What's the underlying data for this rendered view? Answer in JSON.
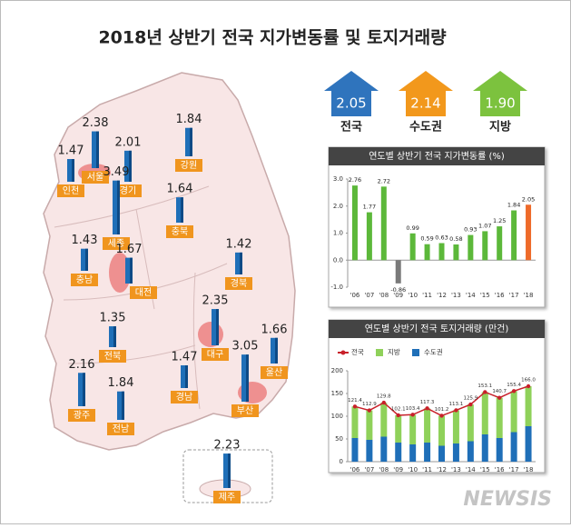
{
  "header": {
    "title": "2018년 상반기 전국 지가변동률 및 토지거래량"
  },
  "badges": [
    {
      "value": "2.05",
      "label": "전국",
      "color": "#2f74bd"
    },
    {
      "value": "2.14",
      "label": "수도권",
      "color": "#f2981c"
    },
    {
      "value": "1.90",
      "label": "지방",
      "color": "#7cc23e"
    }
  ],
  "watermark": "NEWSIS",
  "chart_data": [
    {
      "type": "map",
      "color": "#1f6fb8",
      "label_color": "#f0951e",
      "categories": [
        "서울",
        "인천",
        "경기",
        "강원",
        "세종",
        "충북",
        "충남",
        "대전",
        "경북",
        "대구",
        "전북",
        "울산",
        "부산",
        "경남",
        "광주",
        "전남",
        "제주"
      ],
      "values": [
        2.38,
        1.47,
        2.01,
        1.84,
        3.49,
        1.64,
        1.43,
        1.67,
        1.42,
        2.35,
        1.35,
        1.66,
        3.05,
        1.47,
        2.16,
        1.84,
        2.23
      ]
    },
    {
      "type": "bar",
      "title": "연도별 상반기 전국 지가변동률 (%)",
      "categories": [
        "'06",
        "'07",
        "'08",
        "'09",
        "'10",
        "'11",
        "'12",
        "'13",
        "'14",
        "'15",
        "'16",
        "'17",
        "'18"
      ],
      "values": [
        2.76,
        1.77,
        2.72,
        -0.86,
        0.99,
        0.59,
        0.63,
        0.58,
        0.93,
        1.07,
        1.25,
        1.84,
        2.05
      ],
      "colors": [
        "#5cb83a",
        "#5cb83a",
        "#5cb83a",
        "#7a7a7a",
        "#5cb83a",
        "#5cb83a",
        "#5cb83a",
        "#5cb83a",
        "#5cb83a",
        "#5cb83a",
        "#5cb83a",
        "#5cb83a",
        "#ee6a2a"
      ],
      "ylim": [
        -1,
        3
      ],
      "yticks": [
        {
          "value": -1,
          "label": "-1.0"
        },
        {
          "value": 0,
          "label": "0.0"
        },
        {
          "value": 1,
          "label": "1.0"
        },
        {
          "value": 2,
          "label": "2.0"
        },
        {
          "value": 3,
          "label": "3.0"
        }
      ]
    },
    {
      "type": "combo",
      "title": "연도별 상반기 전국 토지거래량 (만건)",
      "categories": [
        "'06",
        "'07",
        "'08",
        "'09",
        "'10",
        "'11",
        "'12",
        "'13",
        "'14",
        "'15",
        "'16",
        "'17",
        "'18"
      ],
      "series": [
        {
          "name": "전국",
          "color": "#c8202a",
          "kind": "line",
          "values": [
            121.4,
            112.9,
            129.8,
            102.1,
            103.4,
            117.3,
            101.2,
            113.1,
            125.9,
            153.1,
            140.7,
            155.4,
            166.0
          ],
          "value_labels": [
            "121.4",
            "112.9",
            "129.8",
            "102.1",
            "103.4",
            "117.3",
            "101.2",
            "113.1",
            "125.9",
            "153.1",
            "140.7",
            "155.4",
            "166.0"
          ]
        },
        {
          "name": "지방",
          "color": "#8fd15a",
          "kind": "stack",
          "values": [
            69.4,
            64.9,
            74.8,
            60.1,
            65.4,
            75.3,
            66.2,
            73.1,
            80.9,
            93.1,
            88.7,
            90.4,
            88.0
          ]
        },
        {
          "name": "수도권",
          "color": "#1f6fb8",
          "kind": "stack",
          "values": [
            52,
            48,
            55,
            42,
            38,
            42,
            35,
            40,
            45,
            60,
            52,
            65,
            78
          ]
        }
      ],
      "ylim": [
        0,
        200
      ],
      "yticks": [
        0,
        50,
        100,
        150,
        200
      ]
    }
  ]
}
